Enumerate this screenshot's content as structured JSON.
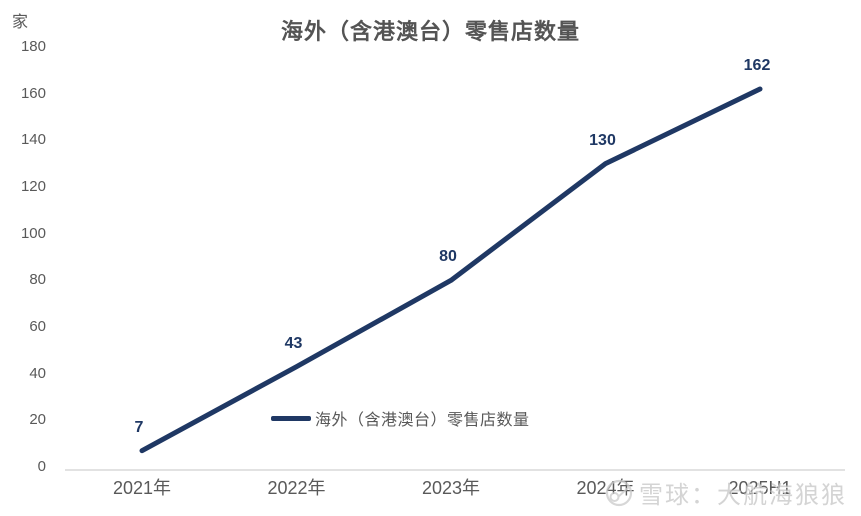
{
  "chart_data": {
    "type": "line",
    "title": "海外（含港澳台）零售店数量",
    "unit_label": "家",
    "categories": [
      "2021年",
      "2022年",
      "2023年",
      "2024年",
      "2025H1"
    ],
    "series": [
      {
        "name": "海外（含港澳台）零售店数量",
        "values": [
          7,
          43,
          80,
          130,
          162
        ],
        "data_labels": [
          "7",
          "43",
          "80",
          "130",
          "162"
        ]
      }
    ],
    "ylim": [
      0,
      180
    ],
    "yticks": [
      0,
      20,
      40,
      60,
      80,
      100,
      120,
      140,
      160,
      180
    ],
    "grid": false,
    "legend_position": "inside-bottom-center",
    "xlabel": "",
    "ylabel": "家"
  },
  "colors": {
    "series_line": "#1f3864",
    "data_label": "#1f3864",
    "axis_text": "#595959",
    "title_text": "#545454",
    "axis_line": "#d9d9d9",
    "watermark": "#c9c9c9"
  },
  "watermark": {
    "text": "雪球：大航海狼狼",
    "logo": "xueqiu-snowball-icon"
  }
}
